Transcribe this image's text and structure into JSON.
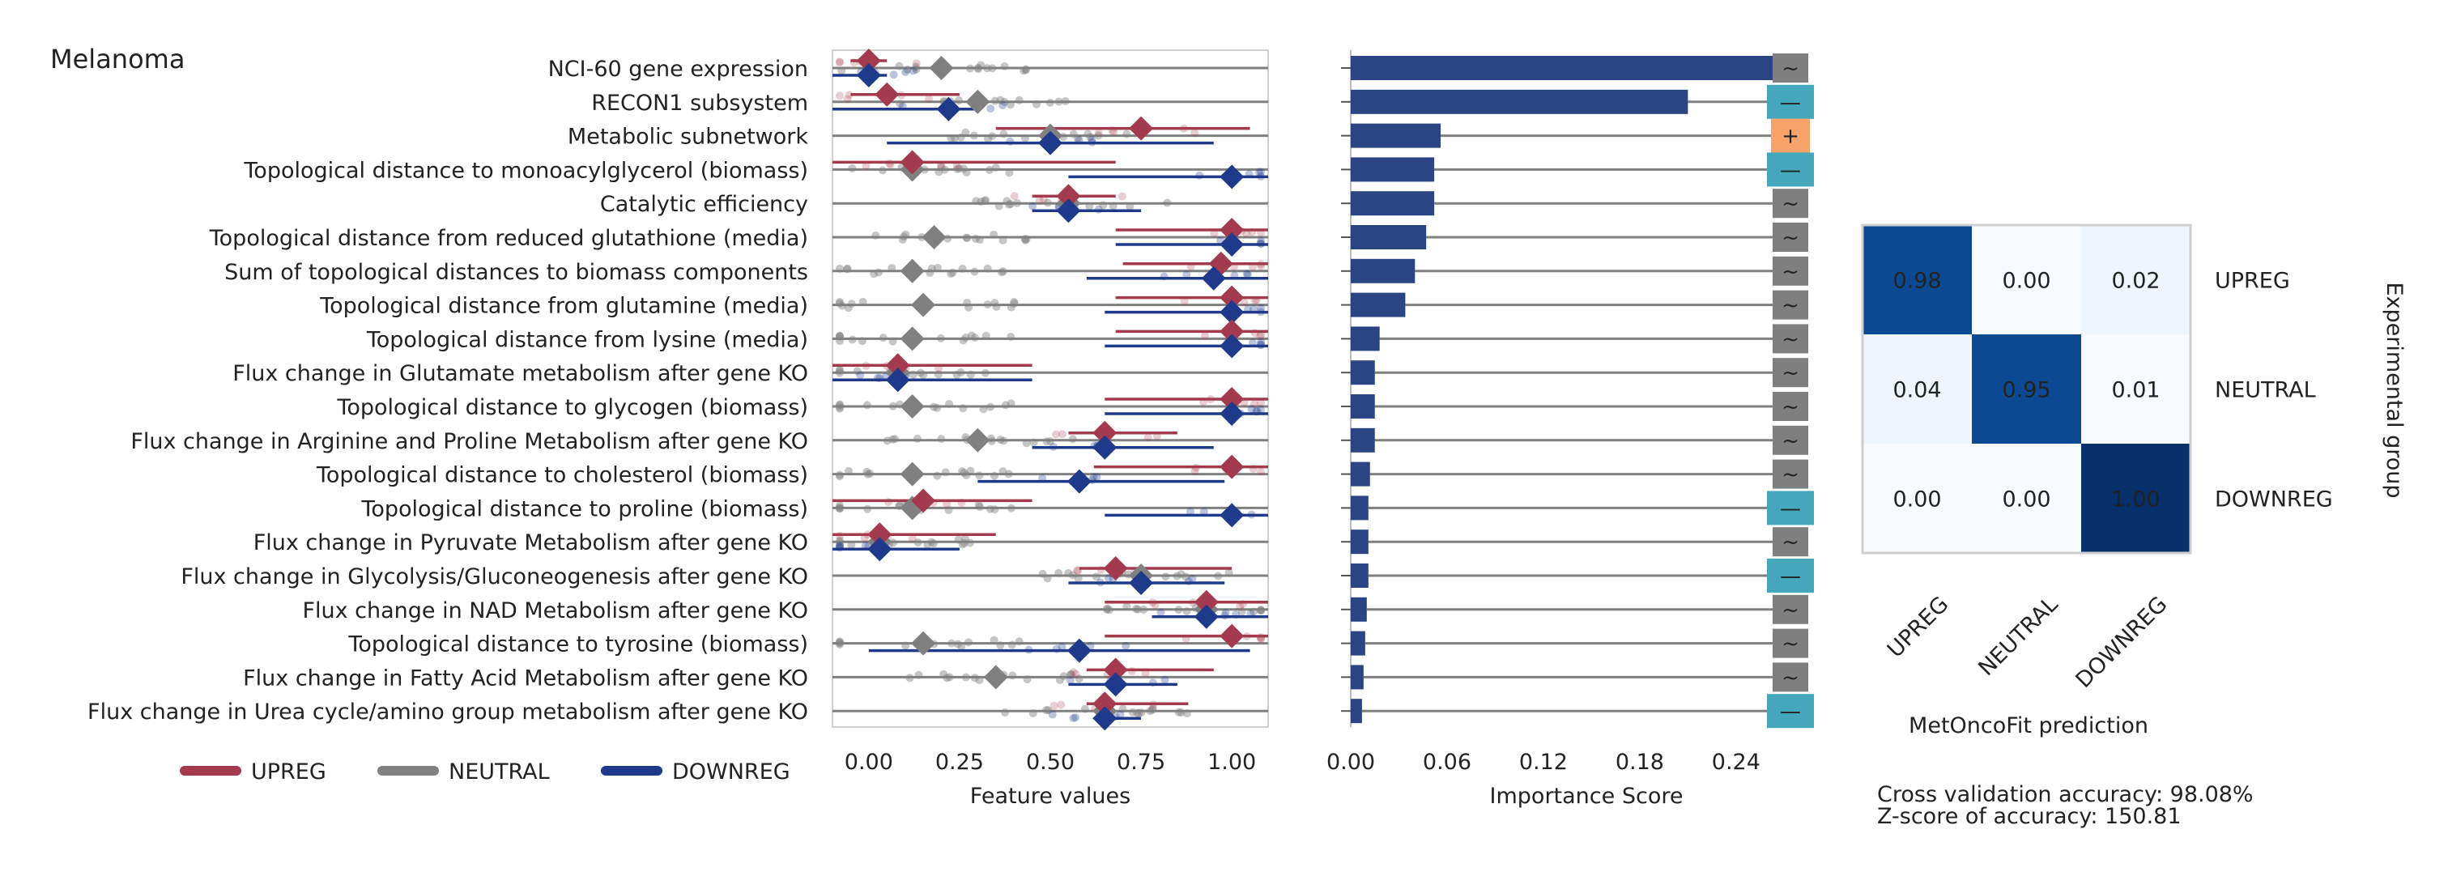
{
  "colors": {
    "upreg": "#a33a4d",
    "neutral": "#808080",
    "downreg": "#1f3a8a",
    "bar": "#2b4484",
    "badge_neutral": "#7f7f7f",
    "badge_down": "#44a7bc",
    "badge_up": "#f7a36a",
    "cm_dark": "#08306b",
    "cm_mid": "#0b4a93",
    "cm_light": "#eef5fc",
    "cm_lightest": "#f6fafe"
  },
  "figure_title": "Melanoma",
  "chart_data": [
    {
      "type": "dot-range",
      "xlabel": "Feature values",
      "xlim": [
        -0.1,
        1.1
      ],
      "xticks": [
        "0.00",
        "0.25",
        "0.50",
        "0.75",
        "1.00"
      ],
      "xtick_values": [
        0,
        0.25,
        0.5,
        0.75,
        1.0
      ],
      "features": [
        {
          "label": "NCI-60 gene expression",
          "upreg": 0.0,
          "neutral": 0.2,
          "downreg": 0.0,
          "up_range": [
            -0.05,
            0.05
          ],
          "down_range": [
            -0.1,
            0.05
          ]
        },
        {
          "label": "RECON1 subsystem",
          "upreg": 0.05,
          "neutral": 0.3,
          "downreg": 0.22,
          "up_range": [
            -0.05,
            0.25
          ],
          "down_range": [
            -0.1,
            0.3
          ]
        },
        {
          "label": "Metabolic subnetwork",
          "upreg": 0.75,
          "neutral": 0.5,
          "downreg": 0.5,
          "up_range": [
            0.35,
            1.05
          ],
          "down_range": [
            0.05,
            0.95
          ]
        },
        {
          "label": "Topological distance to monoacylglycerol (biomass)",
          "upreg": 0.12,
          "neutral": 0.12,
          "downreg": 1.0,
          "up_range": [
            -0.1,
            0.68
          ],
          "down_range": [
            0.55,
            1.1
          ]
        },
        {
          "label": "Catalytic efficiency",
          "upreg": 0.55,
          "neutral": 0.55,
          "downreg": 0.55,
          "up_range": [
            0.45,
            0.68
          ],
          "down_range": [
            0.45,
            0.75
          ]
        },
        {
          "label": "Topological distance from reduced glutathione (media)",
          "upreg": 1.0,
          "neutral": 0.18,
          "downreg": 1.0,
          "up_range": [
            0.68,
            1.1
          ],
          "down_range": [
            0.68,
            1.1
          ]
        },
        {
          "label": "Sum of topological distances to biomass components",
          "upreg": 0.97,
          "neutral": 0.12,
          "downreg": 0.95,
          "up_range": [
            0.7,
            1.1
          ],
          "down_range": [
            0.6,
            1.1
          ]
        },
        {
          "label": "Topological distance from glutamine (media)",
          "upreg": 1.0,
          "neutral": 0.15,
          "downreg": 1.0,
          "up_range": [
            0.68,
            1.1
          ],
          "down_range": [
            0.65,
            1.1
          ]
        },
        {
          "label": "Topological distance from lysine (media)",
          "upreg": 1.0,
          "neutral": 0.12,
          "downreg": 1.0,
          "up_range": [
            0.68,
            1.1
          ],
          "down_range": [
            0.65,
            1.1
          ]
        },
        {
          "label": "Flux change in Glutamate metabolism after gene KO",
          "upreg": 0.08,
          "neutral": 0.08,
          "downreg": 0.08,
          "up_range": [
            -0.1,
            0.45
          ],
          "down_range": [
            -0.1,
            0.45
          ]
        },
        {
          "label": "Topological distance to glycogen (biomass)",
          "upreg": 1.0,
          "neutral": 0.12,
          "downreg": 1.0,
          "up_range": [
            0.65,
            1.1
          ],
          "down_range": [
            0.65,
            1.1
          ]
        },
        {
          "label": "Flux change in Arginine and Proline Metabolism after gene KO",
          "upreg": 0.65,
          "neutral": 0.3,
          "downreg": 0.65,
          "up_range": [
            0.55,
            0.85
          ],
          "down_range": [
            0.45,
            0.95
          ]
        },
        {
          "label": "Topological distance to cholesterol (biomass)",
          "upreg": 1.0,
          "neutral": 0.12,
          "downreg": 0.58,
          "up_range": [
            0.62,
            1.1
          ],
          "down_range": [
            0.3,
            0.98
          ]
        },
        {
          "label": "Topological distance to proline (biomass)",
          "upreg": 0.15,
          "neutral": 0.12,
          "downreg": 1.0,
          "up_range": [
            -0.1,
            0.45
          ],
          "down_range": [
            0.65,
            1.1
          ]
        },
        {
          "label": "Flux change in Pyruvate Metabolism after gene KO",
          "upreg": 0.03,
          "neutral": 0.03,
          "downreg": 0.03,
          "up_range": [
            -0.1,
            0.35
          ],
          "down_range": [
            -0.1,
            0.25
          ]
        },
        {
          "label": "Flux change in Glycolysis/Gluconeogenesis after gene KO",
          "upreg": 0.68,
          "neutral": 0.75,
          "downreg": 0.75,
          "up_range": [
            0.58,
            1.0
          ],
          "down_range": [
            0.55,
            0.98
          ]
        },
        {
          "label": "Flux change in NAD Metabolism after gene KO",
          "upreg": 0.93,
          "neutral": 0.93,
          "downreg": 0.93,
          "up_range": [
            0.65,
            1.1
          ],
          "down_range": [
            0.78,
            1.1
          ]
        },
        {
          "label": "Topological distance to tyrosine (biomass)",
          "upreg": 1.0,
          "neutral": 0.15,
          "downreg": 0.58,
          "up_range": [
            0.65,
            1.1
          ],
          "down_range": [
            0.0,
            1.05
          ]
        },
        {
          "label": "Flux change in Fatty Acid Metabolism after gene KO",
          "upreg": 0.68,
          "neutral": 0.35,
          "downreg": 0.68,
          "up_range": [
            0.6,
            0.95
          ],
          "down_range": [
            0.55,
            0.85
          ]
        },
        {
          "label": "Flux change in Urea cycle/amino group metabolism after gene KO",
          "upreg": 0.65,
          "neutral": 0.65,
          "downreg": 0.65,
          "up_range": [
            0.6,
            0.88
          ],
          "down_range": [
            0.62,
            0.75
          ]
        }
      ],
      "legend": [
        "UPREG",
        "NEUTRAL",
        "DOWNREG"
      ],
      "legend_position": "bottom-left"
    },
    {
      "type": "bar",
      "orientation": "horizontal",
      "xlabel": "Importance Score",
      "xlim": [
        0,
        0.29
      ],
      "xticks": [
        "0.00",
        "0.06",
        "0.12",
        "0.18",
        "0.24"
      ],
      "xtick_values": [
        0,
        0.06,
        0.12,
        0.18,
        0.24
      ],
      "values": [
        0.272,
        0.21,
        0.056,
        0.052,
        0.052,
        0.047,
        0.04,
        0.034,
        0.018,
        0.015,
        0.015,
        0.015,
        0.012,
        0.011,
        0.011,
        0.011,
        0.01,
        0.009,
        0.008,
        0.007
      ],
      "direction_badges": [
        "~",
        "—",
        "+",
        "—",
        "~",
        "~",
        "~",
        "~",
        "~",
        "~",
        "~",
        "~",
        "~",
        "—",
        "~",
        "—",
        "~",
        "~",
        "~",
        "—"
      ]
    },
    {
      "type": "heatmap",
      "title": "",
      "row_labels": [
        "UPREG",
        "NEUTRAL",
        "DOWNREG"
      ],
      "col_labels": [
        "UPREG",
        "NEUTRAL",
        "DOWNREG"
      ],
      "values": [
        [
          "0.98",
          "0.00",
          "0.02"
        ],
        [
          "0.04",
          "0.95",
          "0.01"
        ],
        [
          "0.00",
          "0.00",
          "1.00"
        ]
      ],
      "xlabel": "MetOncoFit prediction",
      "ylabel": "Experimental group"
    }
  ],
  "notes": {
    "accuracy": "Cross validation accuracy: 98.08%",
    "zscore": "Z-score of accuracy: 150.81"
  }
}
